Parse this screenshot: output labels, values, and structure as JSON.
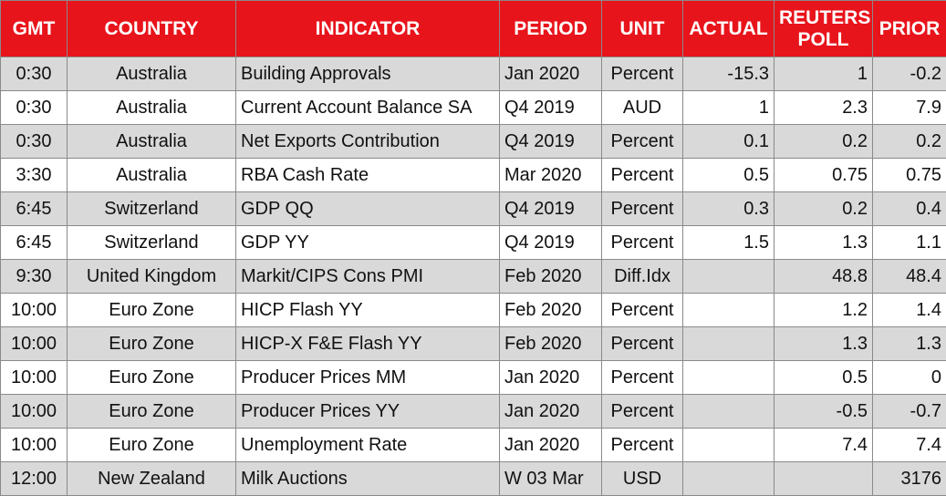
{
  "table": {
    "header": [
      "GMT",
      "COUNTRY",
      "INDICATOR",
      "PERIOD",
      "UNIT",
      "ACTUAL",
      "REUTERS POLL",
      "PRIOR"
    ],
    "rows": [
      [
        "0:30",
        "Australia",
        "Building Approvals",
        "Jan 2020",
        "Percent",
        -15.3,
        1,
        -0.2
      ],
      [
        "0:30",
        "Australia",
        "Current Account Balance SA",
        "Q4 2019",
        "AUD",
        1,
        2.3,
        7.9
      ],
      [
        "0:30",
        "Australia",
        "Net Exports Contribution",
        "Q4 2019",
        "Percent",
        0.1,
        0.2,
        0.2
      ],
      [
        "3:30",
        "Australia",
        "RBA Cash Rate",
        "Mar 2020",
        "Percent",
        0.5,
        0.75,
        0.75
      ],
      [
        "6:45",
        "Switzerland",
        "GDP QQ",
        "Q4 2019",
        "Percent",
        0.3,
        0.2,
        0.4
      ],
      [
        "6:45",
        "Switzerland",
        "GDP YY",
        "Q4 2019",
        "Percent",
        1.5,
        1.3,
        1.1
      ],
      [
        "9:30",
        "United Kingdom",
        "Markit/CIPS Cons PMI",
        "Feb 2020",
        "Diff.Idx",
        null,
        48.8,
        48.4
      ],
      [
        "10:00",
        "Euro Zone",
        "HICP Flash YY",
        "Feb 2020",
        "Percent",
        null,
        1.2,
        1.4
      ],
      [
        "10:00",
        "Euro Zone",
        "HICP-X F&E Flash YY",
        "Feb 2020",
        "Percent",
        null,
        1.3,
        1.3
      ],
      [
        "10:00",
        "Euro Zone",
        "Producer Prices MM",
        "Jan 2020",
        "Percent",
        null,
        0.5,
        0
      ],
      [
        "10:00",
        "Euro Zone",
        "Producer Prices YY",
        "Jan 2020",
        "Percent",
        null,
        -0.5,
        -0.7
      ],
      [
        "10:00",
        "Euro Zone",
        "Unemployment Rate",
        "Jan 2020",
        "Percent",
        null,
        7.4,
        7.4
      ],
      [
        "12:00",
        "New Zealand",
        "Milk Auctions",
        "W 03 Mar",
        "USD",
        null,
        null,
        3176
      ]
    ]
  }
}
